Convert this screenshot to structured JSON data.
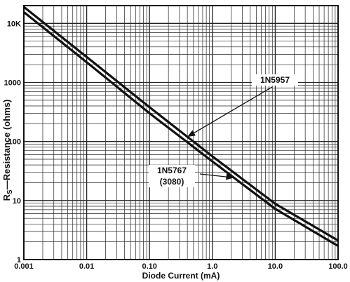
{
  "chart_data": {
    "type": "line",
    "title": "",
    "xlabel": "Diode Current (mA)",
    "ylabel_main": "R",
    "ylabel_sub": "S",
    "ylabel_rest": "—Resistance (ohms)",
    "xscale": "log",
    "yscale": "log",
    "xlim": [
      0.001,
      100.0
    ],
    "ylim": [
      1,
      20000
    ],
    "grid": true,
    "x_ticks": [
      {
        "value": 0.001,
        "label": "0.001"
      },
      {
        "value": 0.01,
        "label": "0.01"
      },
      {
        "value": 0.1,
        "label": "0.10"
      },
      {
        "value": 1,
        "label": "1.0"
      },
      {
        "value": 10,
        "label": "10.0"
      },
      {
        "value": 100,
        "label": "100.0"
      }
    ],
    "y_ticks": [
      {
        "value": 1,
        "label": "1"
      },
      {
        "value": 10,
        "label": "10"
      },
      {
        "value": 100,
        "label": "100"
      },
      {
        "value": 1000,
        "label": "1000"
      },
      {
        "value": 10000,
        "label": "10K"
      }
    ],
    "series": [
      {
        "name": "1N5957",
        "x": [
          0.001,
          0.01,
          0.1,
          1.0,
          10.0,
          100.0
        ],
        "y": [
          19000,
          2700,
          380,
          56,
          8.8,
          2.1
        ]
      },
      {
        "name": "1N5767\n(3080)",
        "x": [
          0.001,
          0.01,
          0.1,
          1.0,
          10.0,
          100.0
        ],
        "y": [
          15500,
          2200,
          300,
          46,
          7.2,
          1.7
        ]
      }
    ],
    "annotations": [
      {
        "label_line1": "1N5957",
        "label_line2": "",
        "series": "1N5957",
        "target_x": 0.4
      },
      {
        "label_line1": "1N5767",
        "label_line2": "(3080)",
        "series": "1N5767\n(3080)",
        "target_x": 2.2
      }
    ]
  }
}
